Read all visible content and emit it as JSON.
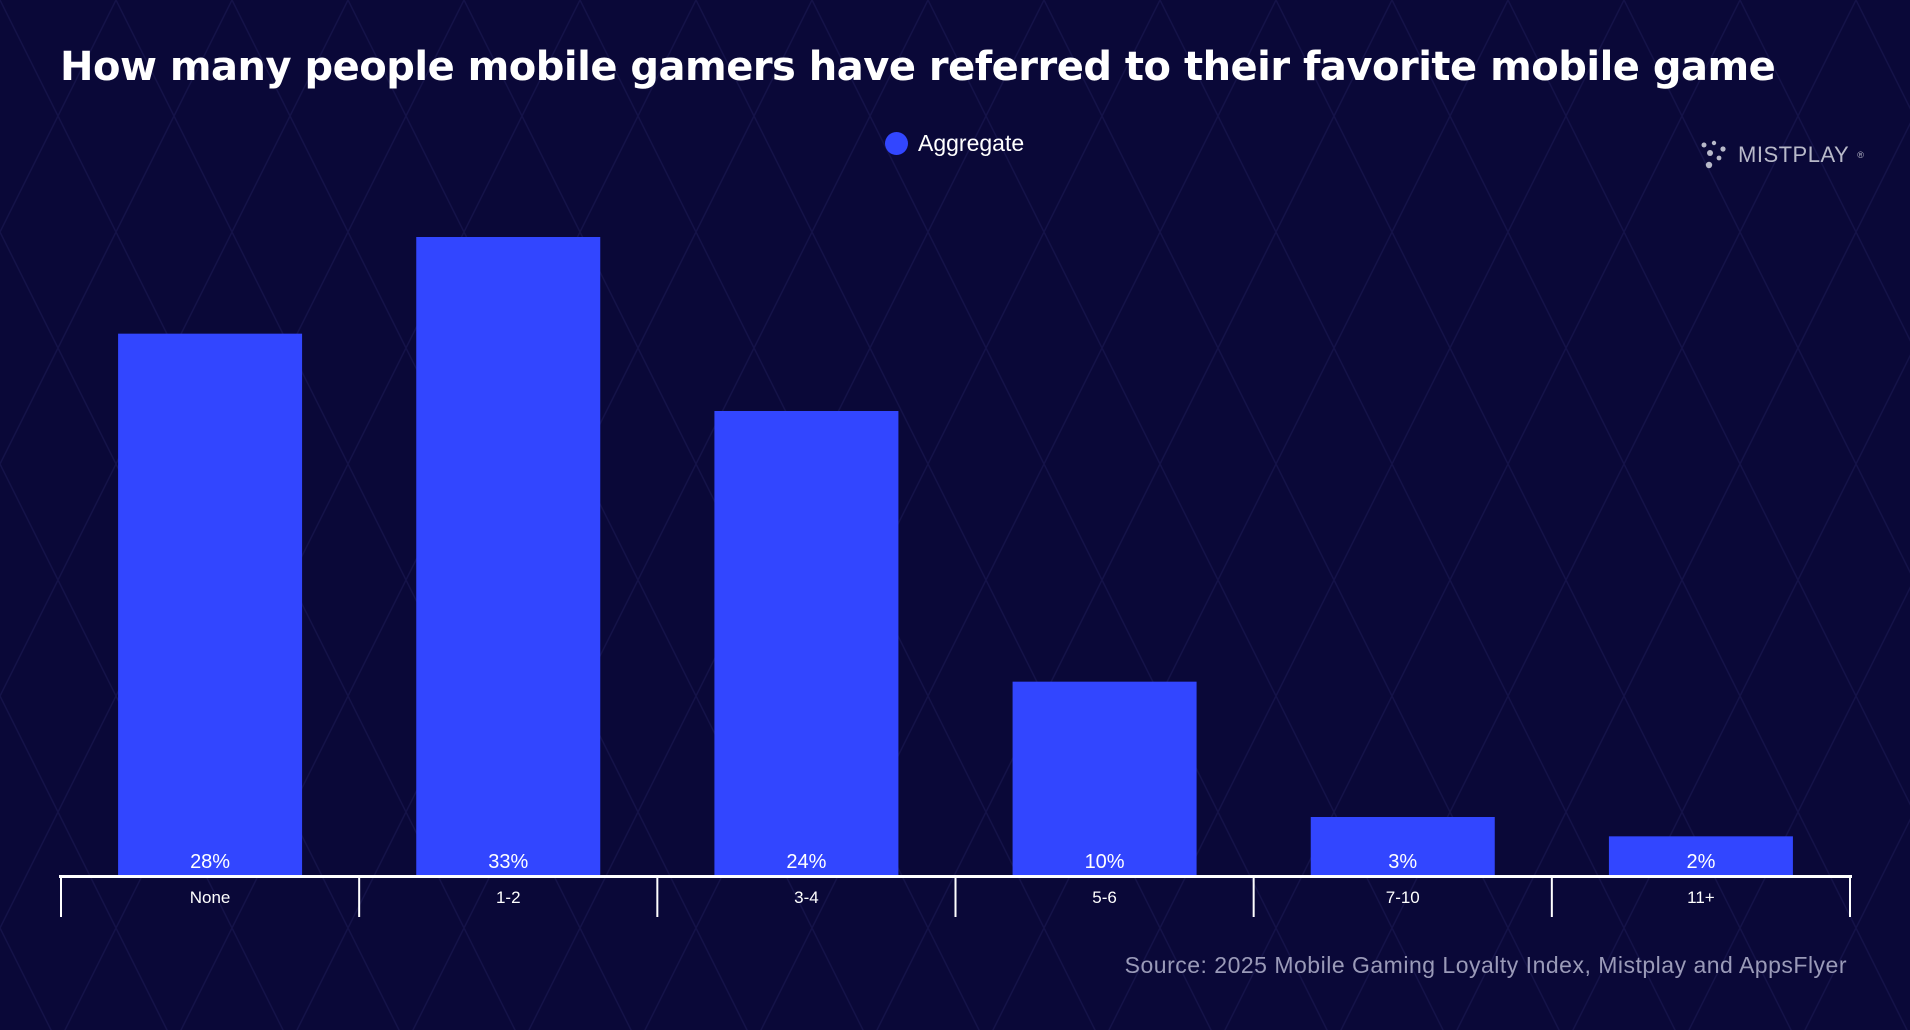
{
  "colors": {
    "background": "#0a0838",
    "bar": "#3246ff",
    "axis": "#ffffff"
  },
  "legend": {
    "label": "Aggregate",
    "color": "#3246ff"
  },
  "brand": {
    "name": "MISTPLAY",
    "mark": "®",
    "icon": "dots-logo-icon"
  },
  "source": "Source: 2025 Mobile Gaming Loyalty Index, Mistplay and AppsFlyer",
  "chart_data": {
    "type": "bar",
    "title": "How many people mobile gamers have referred to their favorite mobile game",
    "xlabel": "",
    "ylabel": "",
    "categories": [
      "None",
      "1-2",
      "3-4",
      "5-6",
      "7-10",
      "11+"
    ],
    "series": [
      {
        "name": "Aggregate",
        "values": [
          28,
          33,
          24,
          10,
          3,
          2
        ]
      }
    ],
    "value_labels": [
      "28%",
      "33%",
      "24%",
      "10%",
      "3%",
      "2%"
    ],
    "unit": "%",
    "ylim": [
      0,
      33
    ],
    "grid": false,
    "legend_position": "top-center"
  }
}
